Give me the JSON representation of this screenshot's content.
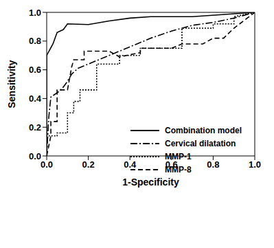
{
  "chart_data": {
    "type": "line",
    "x_label": "1-Specificity",
    "y_label": "Sensitivity",
    "xlim": [
      0,
      1
    ],
    "ylim": [
      0,
      1
    ],
    "xticks": [
      {
        "value": 0,
        "label": "0.0"
      },
      {
        "value": 0.2,
        "label": "0.2"
      },
      {
        "value": 0.4,
        "label": "0.4"
      },
      {
        "value": 0.6,
        "label": "0.6"
      },
      {
        "value": 0.8,
        "label": "0.8"
      },
      {
        "value": 1,
        "label": "1.0"
      }
    ],
    "yticks": [
      {
        "value": 0,
        "label": "0.0"
      },
      {
        "value": 0.2,
        "label": "0.2"
      },
      {
        "value": 0.4,
        "label": "0.4"
      },
      {
        "value": 0.6,
        "label": "0.6"
      },
      {
        "value": 0.8,
        "label": "0.8"
      },
      {
        "value": 1,
        "label": "1.0"
      }
    ],
    "grid": false,
    "legend": "lower right",
    "series": [
      {
        "name": "Combination model",
        "color": "#000000",
        "line_style": "solid",
        "x": [
          0,
          0,
          0.03,
          0.05,
          0.08,
          0.1,
          0.2,
          0.3,
          0.4,
          0.5,
          0.7,
          1
        ],
        "values": [
          0,
          0.7,
          0.78,
          0.86,
          0.88,
          0.92,
          0.915,
          0.94,
          0.96,
          0.97,
          0.97,
          1
        ]
      },
      {
        "name": "Cervical dilatation",
        "color": "#000000",
        "line_style": "dashdot",
        "x": [
          0,
          0.01,
          0.02,
          0.06,
          0.08,
          0.1,
          0.12,
          0.15,
          0.2,
          0.3,
          0.4,
          0.5,
          0.6,
          0.7,
          0.8,
          0.9,
          1
        ],
        "values": [
          0,
          0.27,
          0.41,
          0.45,
          0.48,
          0.52,
          0.57,
          0.61,
          0.64,
          0.7,
          0.76,
          0.82,
          0.87,
          0.91,
          0.93,
          0.96,
          1
        ]
      },
      {
        "name": "MMP-1",
        "color": "#000000",
        "line_style": "dotted",
        "x": [
          0,
          0,
          0.05,
          0.05,
          0.1,
          0.1,
          0.13,
          0.13,
          0.16,
          0.16,
          0.24,
          0.24,
          0.35,
          0.35,
          0.45,
          0.45,
          0.65,
          0.65,
          0.8,
          0.8,
          0.9,
          0.9,
          1
        ],
        "values": [
          0,
          0.14,
          0.14,
          0.16,
          0.16,
          0.3,
          0.3,
          0.38,
          0.38,
          0.46,
          0.46,
          0.64,
          0.64,
          0.7,
          0.7,
          0.75,
          0.75,
          0.89,
          0.89,
          0.92,
          0.92,
          0.97,
          1
        ]
      },
      {
        "name": "MMP-8",
        "color": "#000000",
        "line_style": "dashed",
        "x": [
          0,
          0.02,
          0.02,
          0.05,
          0.05,
          0.1,
          0.12,
          0.13,
          0.18,
          0.18,
          0.3,
          0.35,
          0.45,
          0.45,
          0.6,
          0.65,
          0.75,
          0.8,
          0.85,
          0.9,
          1
        ],
        "values": [
          0,
          0.14,
          0.24,
          0.24,
          0.46,
          0.46,
          0.62,
          0.67,
          0.67,
          0.73,
          0.73,
          0.69,
          0.72,
          0.75,
          0.75,
          0.78,
          0.78,
          0.82,
          0.82,
          0.89,
          1
        ]
      }
    ]
  }
}
